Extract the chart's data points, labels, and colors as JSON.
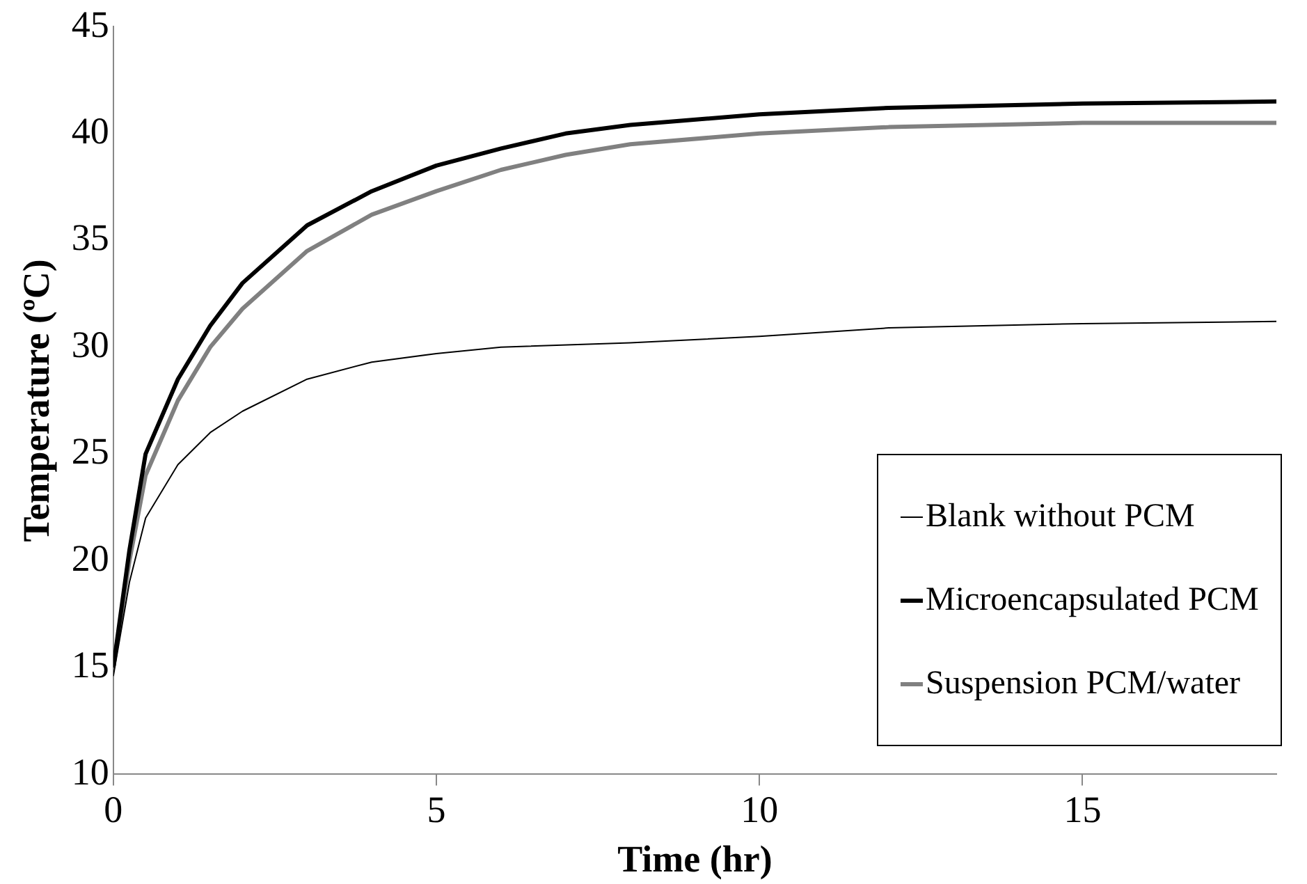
{
  "chart_data": {
    "type": "line",
    "xlabel": "Time (hr)",
    "ylabel": "Temperature (ºC)",
    "xlim": [
      0,
      18
    ],
    "xticks": [
      0,
      5,
      10,
      15
    ],
    "ylim": [
      10,
      45
    ],
    "yticks": [
      10,
      15,
      20,
      25,
      30,
      35,
      40,
      45
    ],
    "grid": false,
    "legend": "bottom right",
    "marker": "none",
    "line_style": "solid",
    "series": [
      {
        "name": "Blank without PCM",
        "color": "#000000",
        "x": [
          0,
          0.25,
          0.5,
          1,
          1.5,
          2,
          3,
          4,
          5,
          6,
          8,
          10,
          12,
          15,
          18
        ],
        "values": [
          14.6,
          19,
          22,
          24.5,
          26,
          27,
          28.5,
          29.3,
          29.7,
          30,
          30.2,
          30.5,
          30.9,
          31.1,
          31.2
        ]
      },
      {
        "name": "Microencapsulated PCM",
        "color": "#000000",
        "x": [
          0,
          0.25,
          0.5,
          1,
          1.5,
          2,
          3,
          4,
          5,
          6,
          7,
          8,
          10,
          12,
          15,
          18
        ],
        "values": [
          15,
          20.5,
          25,
          28.5,
          31,
          33,
          35.7,
          37.3,
          38.5,
          39.3,
          40,
          40.4,
          40.9,
          41.2,
          41.4,
          41.5
        ]
      },
      {
        "name": "Suspension PCM/water",
        "color": "#808080",
        "x": [
          0,
          0.25,
          0.5,
          1,
          1.5,
          2,
          3,
          4,
          5,
          6,
          7,
          8,
          10,
          12,
          15,
          18
        ],
        "values": [
          15,
          20,
          24,
          27.5,
          30,
          31.8,
          34.5,
          36.2,
          37.3,
          38.3,
          39,
          39.5,
          40,
          40.3,
          40.5,
          40.5
        ]
      }
    ]
  }
}
